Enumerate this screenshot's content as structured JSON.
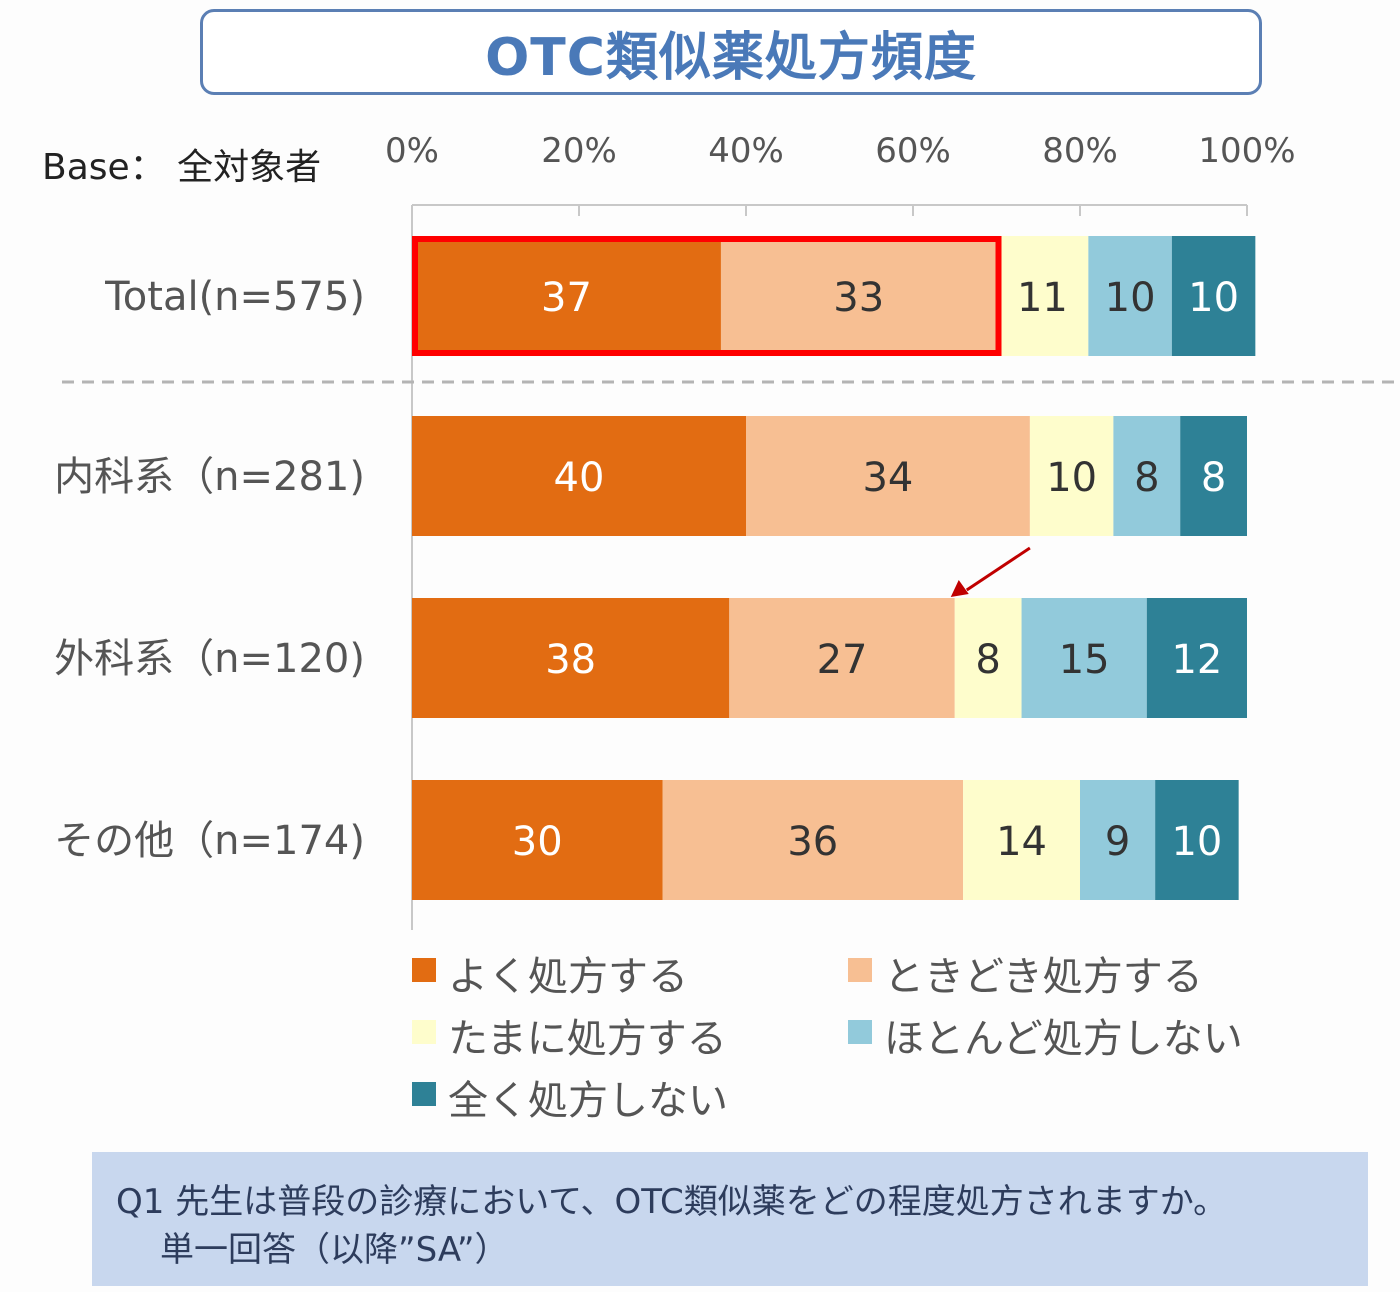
{
  "title": "OTC類似薬処方頻度",
  "base_label": "Base： 全対象者",
  "question": {
    "line1": "Q1  先生は普段の診療において、OTC類似薬をどの程度処方されますか。",
    "line2": "単一回答（以降”SA”）"
  },
  "chart_data": {
    "type": "bar",
    "orientation": "horizontal",
    "stacked": true,
    "xlim": [
      0,
      100
    ],
    "x_ticks": [
      "0%",
      "20%",
      "40%",
      "60%",
      "80%",
      "100%"
    ],
    "categories": [
      "Total(n=575)",
      "内科系（n=281)",
      "外科系（n=120)",
      "その他（n=174)"
    ],
    "series": [
      {
        "name": "よく処方する",
        "color": "#e26c12",
        "label_color": "#ffffff",
        "values": [
          37,
          40,
          38,
          30
        ]
      },
      {
        "name": "ときどき処方する",
        "color": "#f7bf93",
        "label_color": "#333333",
        "values": [
          33,
          34,
          27,
          36
        ]
      },
      {
        "name": "たまに処方する",
        "color": "#fefdcc",
        "label_color": "#333333",
        "values": [
          11,
          10,
          8,
          14
        ]
      },
      {
        "name": "ほとんど処方しない",
        "color": "#92cadb",
        "label_color": "#333333",
        "values": [
          10,
          8,
          15,
          9
        ]
      },
      {
        "name": "全く処方しない",
        "color": "#2e8196",
        "label_color": "#ffffff",
        "values": [
          10,
          8,
          12,
          10
        ]
      }
    ],
    "highlight": {
      "category_index": 0,
      "series": [
        0,
        1
      ],
      "color": "#ff0000"
    },
    "annotation": {
      "type": "arrow",
      "color": "#c00000",
      "points_to": "外科系（n=120) ときどき処方する"
    },
    "separator": "dashed line below Total",
    "legend": {
      "position": "bottom",
      "columns": 2
    }
  }
}
